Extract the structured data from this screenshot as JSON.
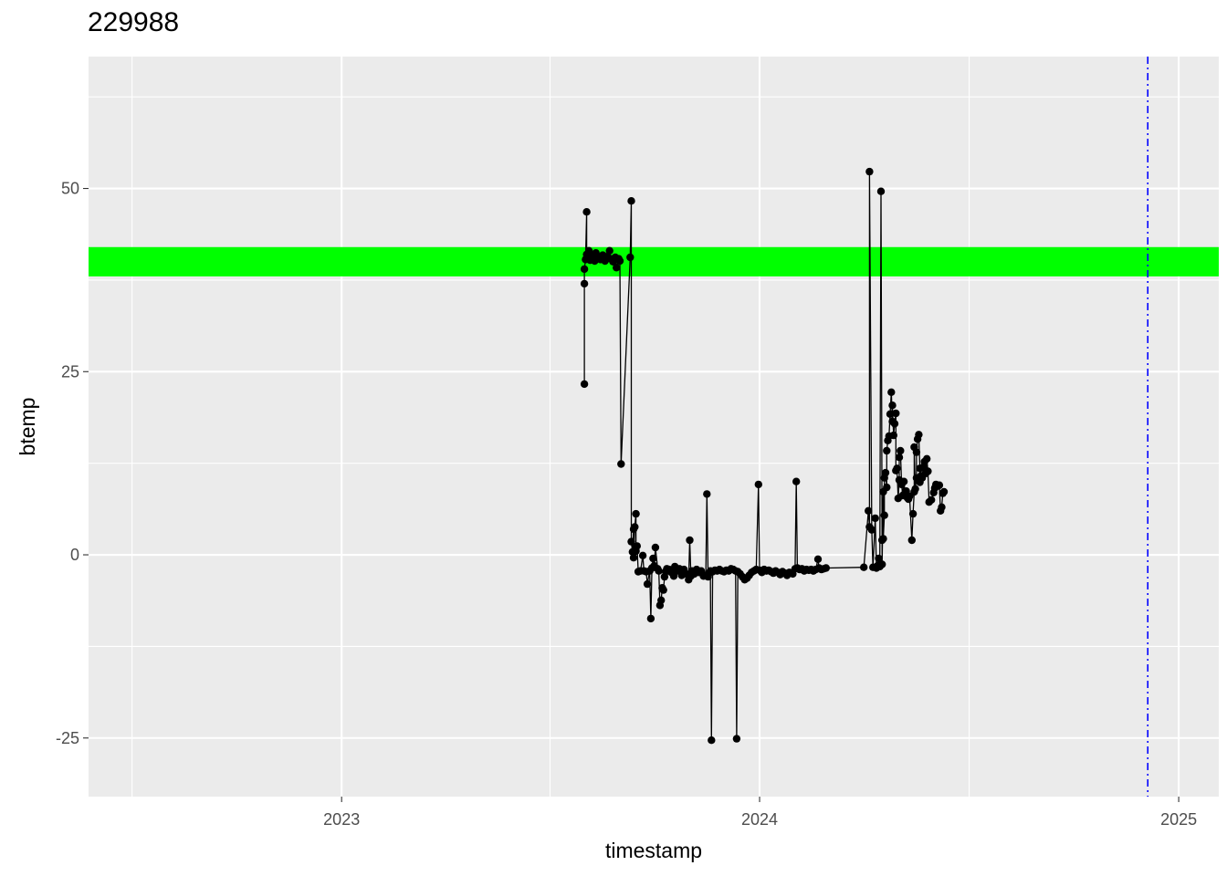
{
  "chart_data": {
    "type": "line",
    "title": "229988",
    "xlabel": "timestamp",
    "ylabel": "btemp",
    "x_ticks": [
      "2023",
      "2024",
      "2025"
    ],
    "y_ticks": [
      -25,
      0,
      25,
      50
    ],
    "xlim": [
      "2022-05-25",
      "2025-02-05"
    ],
    "ylim": [
      -33,
      68
    ],
    "grid": true,
    "background": "#ebebeb",
    "band": {
      "ymin": 38,
      "ymax": 42,
      "color": "#00ff00"
    },
    "vline": {
      "x": "2024-12-05",
      "color": "#0000ff",
      "style": "dashdot"
    },
    "series": [
      {
        "color": "#000000",
        "points": [
          [
            "2023-08-01",
            37
          ],
          [
            "2023-08-01",
            23.3
          ],
          [
            "2023-08-01",
            39
          ],
          [
            "2023-08-02",
            40.3
          ],
          [
            "2023-08-03",
            46.8
          ],
          [
            "2023-08-03",
            41
          ],
          [
            "2023-08-04",
            40.5
          ],
          [
            "2023-08-05",
            41.5
          ],
          [
            "2023-08-06",
            40.2
          ],
          [
            "2023-08-08",
            40.8
          ],
          [
            "2023-08-10",
            40.1
          ],
          [
            "2023-08-11",
            41.2
          ],
          [
            "2023-08-13",
            40.6
          ],
          [
            "2023-08-15",
            40.3
          ],
          [
            "2023-08-17",
            40.9
          ],
          [
            "2023-08-19",
            40.1
          ],
          [
            "2023-08-21",
            40.7
          ],
          [
            "2023-08-23",
            41.5
          ],
          [
            "2023-08-24",
            40.4
          ],
          [
            "2023-08-26",
            40.0
          ],
          [
            "2023-08-28",
            40.6
          ],
          [
            "2023-08-29",
            39.2
          ],
          [
            "2023-08-31",
            40.4
          ],
          [
            "2023-09-01",
            40.1
          ],
          [
            "2023-09-02",
            12.4
          ],
          [
            "2023-09-10",
            40.6
          ],
          [
            "2023-09-11",
            48.3
          ],
          [
            "2023-09-11",
            1.8
          ],
          [
            "2023-09-12",
            0.4
          ],
          [
            "2023-09-13",
            3.5
          ],
          [
            "2023-09-13",
            -0.4
          ],
          [
            "2023-09-14",
            3.8
          ],
          [
            "2023-09-15",
            5.6
          ],
          [
            "2023-09-15",
            0.5
          ],
          [
            "2023-09-16",
            1.2
          ],
          [
            "2023-09-17",
            -2.3
          ],
          [
            "2023-09-19",
            -2.2
          ],
          [
            "2023-09-21",
            -0.1
          ],
          [
            "2023-09-22",
            -2.2
          ],
          [
            "2023-09-24",
            -2.3
          ],
          [
            "2023-09-25",
            -4.0
          ],
          [
            "2023-09-27",
            -2.2
          ],
          [
            "2023-09-28",
            -8.7
          ],
          [
            "2023-09-29",
            -1.8
          ],
          [
            "2023-09-30",
            -0.5
          ],
          [
            "2023-10-01",
            -1.5
          ],
          [
            "2023-10-02",
            1.0
          ],
          [
            "2023-10-04",
            -1.9
          ],
          [
            "2023-10-05",
            -2.2
          ],
          [
            "2023-10-06",
            -6.9
          ],
          [
            "2023-10-07",
            -6.2
          ],
          [
            "2023-10-08",
            -4.5
          ],
          [
            "2023-10-09",
            -4.8
          ],
          [
            "2023-10-10",
            -3.0
          ],
          [
            "2023-10-11",
            -2.3
          ],
          [
            "2023-10-12",
            -1.9
          ],
          [
            "2023-10-14",
            -2.0
          ],
          [
            "2023-10-16",
            -2.4
          ],
          [
            "2023-10-18",
            -2.9
          ],
          [
            "2023-10-19",
            -1.6
          ],
          [
            "2023-10-21",
            -2.2
          ],
          [
            "2023-10-23",
            -1.9
          ],
          [
            "2023-10-25",
            -2.8
          ],
          [
            "2023-10-27",
            -2.0
          ],
          [
            "2023-10-29",
            -2.6
          ],
          [
            "2023-10-31",
            -3.4
          ],
          [
            "2023-11-01",
            2.0
          ],
          [
            "2023-11-02",
            -2.9
          ],
          [
            "2023-11-03",
            -2.2
          ],
          [
            "2023-11-05",
            -2.6
          ],
          [
            "2023-11-07",
            -2.0
          ],
          [
            "2023-11-09",
            -2.4
          ],
          [
            "2023-11-11",
            -2.2
          ],
          [
            "2023-11-13",
            -2.9
          ],
          [
            "2023-11-15",
            -2.8
          ],
          [
            "2023-11-16",
            8.3
          ],
          [
            "2023-11-17",
            -3.0
          ],
          [
            "2023-11-18",
            -2.5
          ],
          [
            "2023-11-19",
            -2.2
          ],
          [
            "2023-11-20",
            -25.3
          ],
          [
            "2023-11-21",
            -2.3
          ],
          [
            "2023-11-23",
            -2.1
          ],
          [
            "2023-11-25",
            -2.2
          ],
          [
            "2023-11-27",
            -2.0
          ],
          [
            "2023-11-29",
            -2.2
          ],
          [
            "2023-12-01",
            -2.3
          ],
          [
            "2023-12-03",
            -2.1
          ],
          [
            "2023-12-05",
            -2.2
          ],
          [
            "2023-12-07",
            -1.9
          ],
          [
            "2023-12-09",
            -2.0
          ],
          [
            "2023-12-11",
            -2.2
          ],
          [
            "2023-12-12",
            -25.1
          ],
          [
            "2023-12-13",
            -2.3
          ],
          [
            "2023-12-15",
            -2.6
          ],
          [
            "2023-12-17",
            -3.0
          ],
          [
            "2023-12-19",
            -3.4
          ],
          [
            "2023-12-21",
            -3.2
          ],
          [
            "2023-12-23",
            -2.8
          ],
          [
            "2023-12-25",
            -2.4
          ],
          [
            "2023-12-27",
            -2.2
          ],
          [
            "2023-12-29",
            -2.0
          ],
          [
            "2023-12-31",
            9.6
          ],
          [
            "2024-01-01",
            -2.1
          ],
          [
            "2024-01-03",
            -2.4
          ],
          [
            "2024-01-05",
            -2.0
          ],
          [
            "2024-01-07",
            -2.2
          ],
          [
            "2024-01-09",
            -2.1
          ],
          [
            "2024-01-11",
            -2.3
          ],
          [
            "2024-01-13",
            -2.5
          ],
          [
            "2024-01-15",
            -2.2
          ],
          [
            "2024-01-17",
            -2.4
          ],
          [
            "2024-01-19",
            -2.7
          ],
          [
            "2024-01-21",
            -2.3
          ],
          [
            "2024-01-23",
            -2.5
          ],
          [
            "2024-01-25",
            -2.8
          ],
          [
            "2024-01-27",
            -2.4
          ],
          [
            "2024-01-30",
            -2.6
          ],
          [
            "2024-02-01",
            -1.9
          ],
          [
            "2024-02-02",
            10.0
          ],
          [
            "2024-02-03",
            -1.8
          ],
          [
            "2024-02-05",
            -2.0
          ],
          [
            "2024-02-07",
            -1.9
          ],
          [
            "2024-02-09",
            -2.2
          ],
          [
            "2024-02-11",
            -2.0
          ],
          [
            "2024-02-13",
            -2.1
          ],
          [
            "2024-02-15",
            -2.0
          ],
          [
            "2024-02-17",
            -2.2
          ],
          [
            "2024-02-19",
            -2.0
          ],
          [
            "2024-02-21",
            -0.6
          ],
          [
            "2024-02-22",
            -1.8
          ],
          [
            "2024-02-24",
            -2.0
          ],
          [
            "2024-02-26",
            -1.9
          ],
          [
            "2024-02-28",
            -1.8
          ],
          [
            "2024-04-01",
            -1.7
          ],
          [
            "2024-04-05",
            6.0
          ],
          [
            "2024-04-06",
            3.8
          ],
          [
            "2024-04-06",
            52.3
          ],
          [
            "2024-04-08",
            3.4
          ],
          [
            "2024-04-09",
            -1.7
          ],
          [
            "2024-04-11",
            5.0
          ],
          [
            "2024-04-12",
            -1.8
          ],
          [
            "2024-04-13",
            -1.5
          ],
          [
            "2024-04-14",
            -0.5
          ],
          [
            "2024-04-15",
            -1.6
          ],
          [
            "2024-04-16",
            49.6
          ],
          [
            "2024-04-17",
            2.0
          ],
          [
            "2024-04-17",
            -1.3
          ],
          [
            "2024-04-18",
            8.6
          ],
          [
            "2024-04-18",
            2.2
          ],
          [
            "2024-04-19",
            5.4
          ],
          [
            "2024-04-19",
            10.5
          ],
          [
            "2024-04-20",
            11.2
          ],
          [
            "2024-04-21",
            9.2
          ],
          [
            "2024-04-21",
            14.2
          ],
          [
            "2024-04-22",
            15.6
          ],
          [
            "2024-04-23",
            16.2
          ],
          [
            "2024-04-24",
            19.2
          ],
          [
            "2024-04-25",
            22.2
          ],
          [
            "2024-04-26",
            18.2
          ],
          [
            "2024-04-26",
            20.4
          ],
          [
            "2024-04-27",
            16.3
          ],
          [
            "2024-04-28",
            17.9
          ],
          [
            "2024-04-29",
            19.3
          ],
          [
            "2024-04-29",
            11.5
          ],
          [
            "2024-04-30",
            11.8
          ],
          [
            "2024-05-01",
            7.7
          ],
          [
            "2024-05-02",
            10.2
          ],
          [
            "2024-05-02",
            13.3
          ],
          [
            "2024-05-03",
            14.2
          ],
          [
            "2024-05-04",
            9.6
          ],
          [
            "2024-05-05",
            8.1
          ],
          [
            "2024-05-06",
            10.0
          ],
          [
            "2024-05-07",
            8.4
          ],
          [
            "2024-05-08",
            8.7
          ],
          [
            "2024-05-09",
            7.8
          ],
          [
            "2024-05-10",
            7.6
          ],
          [
            "2024-05-11",
            8.0
          ],
          [
            "2024-05-13",
            2.0
          ],
          [
            "2024-05-14",
            5.6
          ],
          [
            "2024-05-15",
            8.6
          ],
          [
            "2024-05-15",
            14.7
          ],
          [
            "2024-05-16",
            9.0
          ],
          [
            "2024-05-17",
            10.5
          ],
          [
            "2024-05-17",
            14.0
          ],
          [
            "2024-05-18",
            15.8
          ],
          [
            "2024-05-19",
            16.4
          ],
          [
            "2024-05-20",
            11.8
          ],
          [
            "2024-05-20",
            9.9
          ],
          [
            "2024-05-21",
            10.8
          ],
          [
            "2024-05-22",
            10.5
          ],
          [
            "2024-05-23",
            12.0
          ],
          [
            "2024-05-24",
            12.7
          ],
          [
            "2024-05-25",
            11.1
          ],
          [
            "2024-05-26",
            13.1
          ],
          [
            "2024-05-27",
            11.4
          ],
          [
            "2024-05-28",
            7.2
          ],
          [
            "2024-05-30",
            7.5
          ],
          [
            "2024-06-01",
            8.5
          ],
          [
            "2024-06-02",
            9.1
          ],
          [
            "2024-06-03",
            9.6
          ],
          [
            "2024-06-05",
            9.4
          ],
          [
            "2024-06-06",
            9.5
          ],
          [
            "2024-06-07",
            6.0
          ],
          [
            "2024-06-08",
            6.5
          ],
          [
            "2024-06-09",
            8.4
          ],
          [
            "2024-06-10",
            8.6
          ]
        ]
      }
    ]
  }
}
